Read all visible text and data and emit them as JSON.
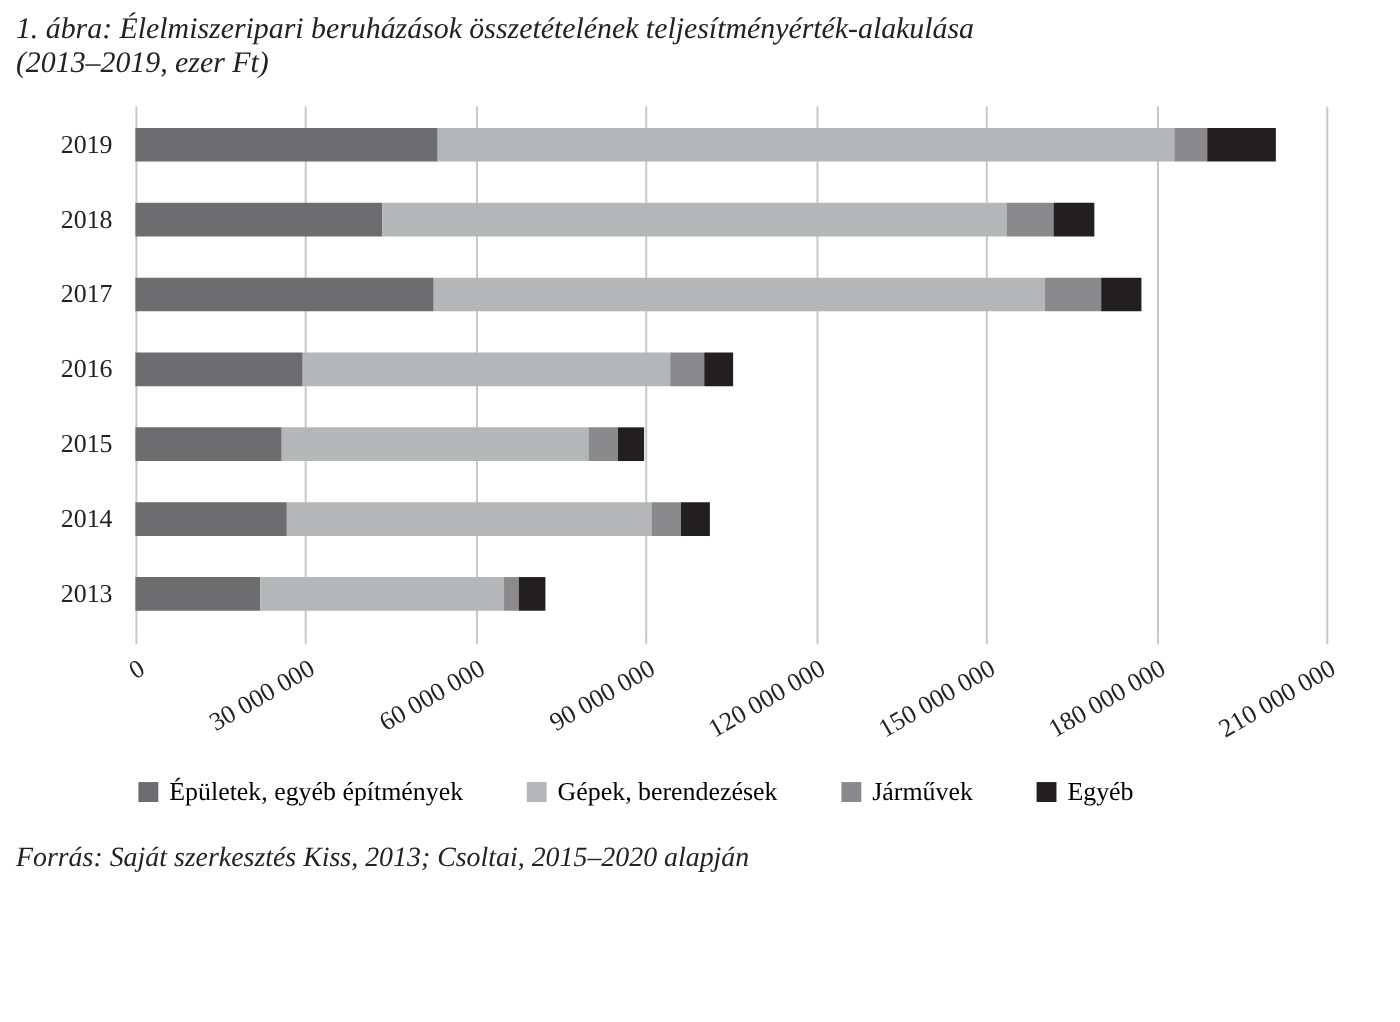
{
  "chart_data": {
    "type": "bar",
    "orientation": "horizontal",
    "stacked": true,
    "title": "1. ábra: Élelmiszeripari beruházások összetételének teljesítményérték-alakulása",
    "subtitle": "(2013–2019, ezer Ft)",
    "categories": [
      "2019",
      "2018",
      "2017",
      "2016",
      "2015",
      "2014",
      "2013"
    ],
    "series": [
      {
        "name": "Épületek, egyéb építmények",
        "color": "#6d6d6f",
        "values": [
          53300000,
          43500000,
          52600000,
          29500000,
          25800000,
          26700000,
          22000000
        ]
      },
      {
        "name": "Gépek, berendezések",
        "color": "#b5b6b8",
        "values": [
          129900000,
          110100000,
          107800000,
          64800000,
          54100000,
          64300000,
          43000000
        ]
      },
      {
        "name": "Járművek",
        "color": "#8a8a8c",
        "values": [
          5800000,
          8300000,
          9900000,
          6000000,
          5200000,
          5200000,
          2600000
        ]
      },
      {
        "name": "Egyéb",
        "color": "#231f20",
        "values": [
          12100000,
          7200000,
          7100000,
          5100000,
          4600000,
          5100000,
          4700000
        ]
      }
    ],
    "xlim": [
      0,
      210000000
    ],
    "xticks": [
      0,
      {
        "value": 30000000,
        "label": "30 000 000"
      },
      {
        "value": 60000000,
        "label": "60 000 000"
      },
      {
        "value": 90000000,
        "label": "90 000 000"
      },
      {
        "value": 120000000,
        "label": "120 000 000"
      },
      {
        "value": 150000000,
        "label": "150 000 000"
      },
      {
        "value": 180000000,
        "label": "180 000 000"
      },
      {
        "value": 210000000,
        "label": "210 000 000"
      }
    ],
    "grid": "x",
    "legend": "bottom",
    "annotations": [
      "Forrás: Saját szerkesztés Kiss, 2013; Csoltai, 2015–2020 alapján"
    ]
  }
}
